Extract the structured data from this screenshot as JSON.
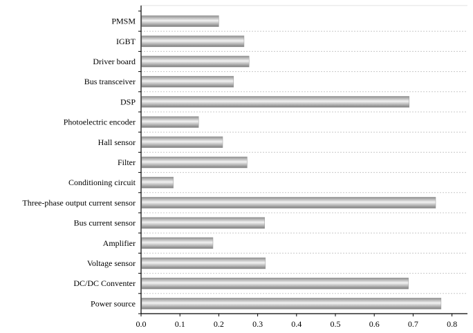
{
  "chart_data": {
    "type": "bar",
    "orientation": "horizontal",
    "title": "",
    "xlabel": "",
    "ylabel": "",
    "categories": [
      "PMSM",
      "IGBT",
      "Driver board",
      "Bus transceiver",
      "DSP",
      "Photoelectric encoder",
      "Hall sensor",
      "Filter",
      "Conditioning circuit",
      "Three-phase output current sensor",
      "Bus current sensor",
      "Amplifier",
      "Voltage sensor",
      "DC/DC Conventer",
      "Power source"
    ],
    "values": [
      0.2,
      0.265,
      0.278,
      0.238,
      0.69,
      0.148,
      0.21,
      0.273,
      0.083,
      0.758,
      0.318,
      0.185,
      0.32,
      0.688,
      0.772
    ],
    "xlim": [
      0.0,
      0.8
    ],
    "xticks": [
      "0.0",
      "0.1",
      "0.2",
      "0.3",
      "0.4",
      "0.5",
      "0.6",
      "0.7",
      "0.8"
    ],
    "grid": "horizontal dotted",
    "legend": "none",
    "bar_color": "#b5b5b5"
  }
}
